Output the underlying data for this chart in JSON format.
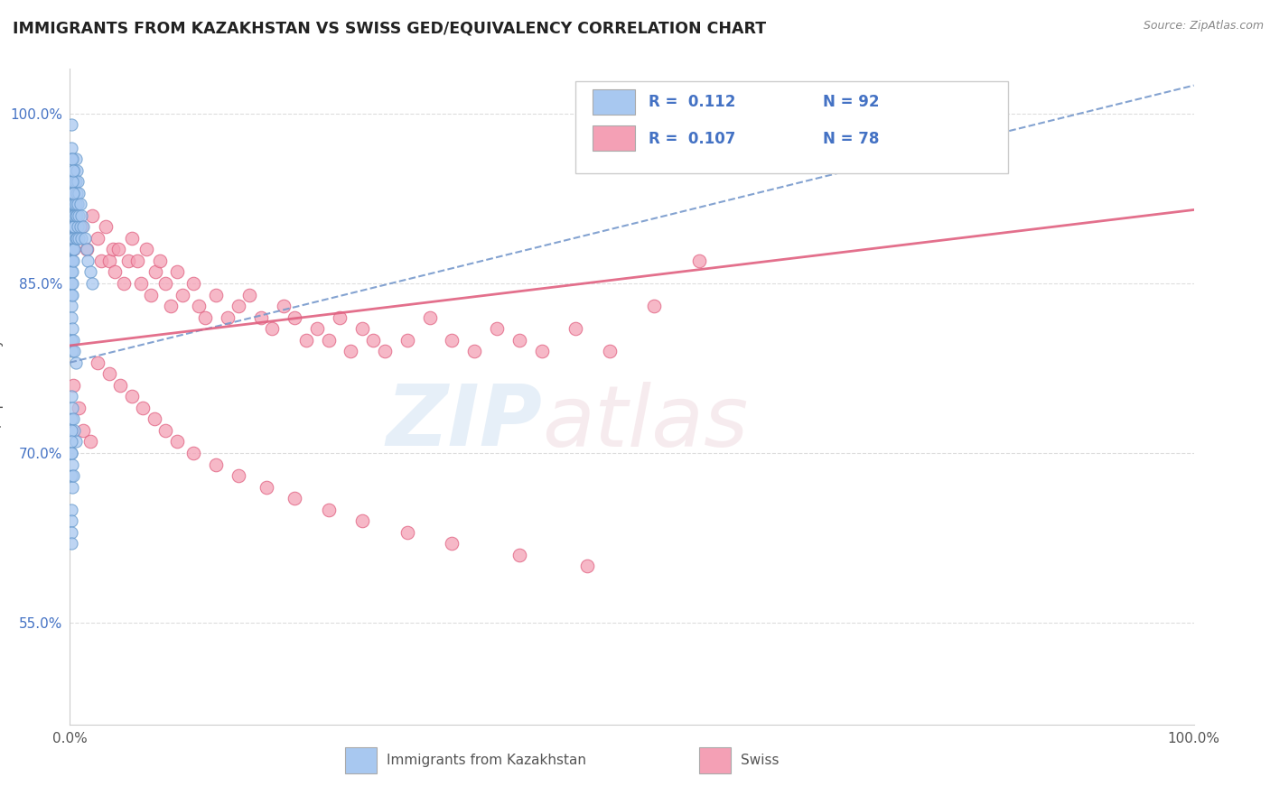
{
  "title": "IMMIGRANTS FROM KAZAKHSTAN VS SWISS GED/EQUIVALENCY CORRELATION CHART",
  "source": "Source: ZipAtlas.com",
  "ylabel": "GED/Equivalency",
  "xlim": [
    0.0,
    1.0
  ],
  "ylim": [
    0.46,
    1.04
  ],
  "y_tick_labels": [
    "55.0%",
    "70.0%",
    "85.0%",
    "100.0%"
  ],
  "y_tick_positions": [
    0.55,
    0.7,
    0.85,
    1.0
  ],
  "grid_color": "#dddddd",
  "background_color": "#ffffff",
  "series1_color": "#A8C8F0",
  "series2_color": "#F4A0B5",
  "series1_edge": "#6699CC",
  "series2_edge": "#E06080",
  "line1_color": "#7799CC",
  "line2_color": "#E06080",
  "series1_x": [
    0.001,
    0.001,
    0.001,
    0.001,
    0.001,
    0.001,
    0.001,
    0.001,
    0.001,
    0.001,
    0.002,
    0.002,
    0.002,
    0.002,
    0.002,
    0.002,
    0.002,
    0.002,
    0.002,
    0.003,
    0.003,
    0.003,
    0.003,
    0.003,
    0.003,
    0.003,
    0.003,
    0.004,
    0.004,
    0.004,
    0.004,
    0.004,
    0.004,
    0.005,
    0.005,
    0.005,
    0.005,
    0.005,
    0.006,
    0.006,
    0.006,
    0.006,
    0.007,
    0.007,
    0.007,
    0.008,
    0.008,
    0.008,
    0.009,
    0.009,
    0.01,
    0.01,
    0.012,
    0.013,
    0.015,
    0.016,
    0.018,
    0.02,
    0.001,
    0.001,
    0.001,
    0.002,
    0.002,
    0.003,
    0.003,
    0.001,
    0.001,
    0.002,
    0.002,
    0.003,
    0.004,
    0.005,
    0.001,
    0.001,
    0.002,
    0.003,
    0.004,
    0.005,
    0.001,
    0.001,
    0.002,
    0.002,
    0.003,
    0.001,
    0.001,
    0.001,
    0.001,
    0.001,
    0.001,
    0.001
  ],
  "series1_y": [
    0.92,
    0.91,
    0.9,
    0.89,
    0.88,
    0.87,
    0.86,
    0.85,
    0.84,
    0.83,
    0.93,
    0.92,
    0.9,
    0.89,
    0.88,
    0.87,
    0.86,
    0.85,
    0.84,
    0.94,
    0.93,
    0.92,
    0.91,
    0.9,
    0.89,
    0.88,
    0.87,
    0.95,
    0.94,
    0.92,
    0.91,
    0.9,
    0.88,
    0.96,
    0.94,
    0.92,
    0.91,
    0.89,
    0.95,
    0.93,
    0.91,
    0.89,
    0.94,
    0.92,
    0.9,
    0.93,
    0.91,
    0.89,
    0.92,
    0.9,
    0.91,
    0.89,
    0.9,
    0.89,
    0.88,
    0.87,
    0.86,
    0.85,
    0.99,
    0.97,
    0.96,
    0.96,
    0.94,
    0.95,
    0.93,
    0.82,
    0.8,
    0.81,
    0.79,
    0.8,
    0.79,
    0.78,
    0.75,
    0.73,
    0.74,
    0.73,
    0.72,
    0.71,
    0.7,
    0.68,
    0.69,
    0.67,
    0.68,
    0.72,
    0.71,
    0.7,
    0.65,
    0.64,
    0.63,
    0.62
  ],
  "series2_x": [
    0.003,
    0.01,
    0.015,
    0.02,
    0.025,
    0.028,
    0.032,
    0.035,
    0.038,
    0.04,
    0.043,
    0.048,
    0.052,
    0.055,
    0.06,
    0.063,
    0.068,
    0.072,
    0.076,
    0.08,
    0.085,
    0.09,
    0.095,
    0.1,
    0.11,
    0.115,
    0.12,
    0.13,
    0.14,
    0.15,
    0.16,
    0.17,
    0.18,
    0.19,
    0.2,
    0.21,
    0.22,
    0.23,
    0.24,
    0.25,
    0.26,
    0.27,
    0.28,
    0.3,
    0.32,
    0.34,
    0.36,
    0.38,
    0.4,
    0.42,
    0.45,
    0.48,
    0.52,
    0.56,
    0.025,
    0.035,
    0.045,
    0.055,
    0.065,
    0.075,
    0.085,
    0.095,
    0.11,
    0.13,
    0.15,
    0.175,
    0.2,
    0.23,
    0.26,
    0.3,
    0.34,
    0.4,
    0.46,
    0.003,
    0.008,
    0.012,
    0.018
  ],
  "series2_y": [
    0.88,
    0.9,
    0.88,
    0.91,
    0.89,
    0.87,
    0.9,
    0.87,
    0.88,
    0.86,
    0.88,
    0.85,
    0.87,
    0.89,
    0.87,
    0.85,
    0.88,
    0.84,
    0.86,
    0.87,
    0.85,
    0.83,
    0.86,
    0.84,
    0.85,
    0.83,
    0.82,
    0.84,
    0.82,
    0.83,
    0.84,
    0.82,
    0.81,
    0.83,
    0.82,
    0.8,
    0.81,
    0.8,
    0.82,
    0.79,
    0.81,
    0.8,
    0.79,
    0.8,
    0.82,
    0.8,
    0.79,
    0.81,
    0.8,
    0.79,
    0.81,
    0.79,
    0.83,
    0.87,
    0.78,
    0.77,
    0.76,
    0.75,
    0.74,
    0.73,
    0.72,
    0.71,
    0.7,
    0.69,
    0.68,
    0.67,
    0.66,
    0.65,
    0.64,
    0.63,
    0.62,
    0.61,
    0.6,
    0.76,
    0.74,
    0.72,
    0.71
  ]
}
